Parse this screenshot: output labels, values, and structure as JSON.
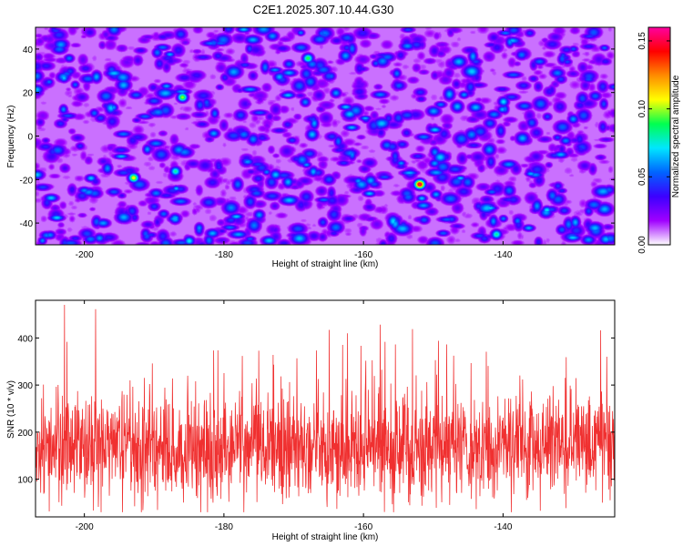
{
  "title": "C2E1.2025.307.10.44.G30",
  "chart_data": [
    {
      "type": "heatmap",
      "xlabel": "Height of straight line (km)",
      "ylabel": "Frequency (Hz)",
      "xlim": [
        -207,
        -124
      ],
      "ylim": [
        -50,
        50
      ],
      "xticks": [
        -200,
        -180,
        -160,
        -140
      ],
      "yticks": [
        -40,
        -20,
        0,
        20,
        40
      ],
      "xtick_labels": [
        "-200",
        "-180",
        "-160",
        "-140"
      ],
      "ytick_labels": [
        "-40",
        "-20",
        "0",
        "20",
        "40"
      ],
      "colorbar": {
        "label": "Normalized spectral amplitude",
        "range": [
          0,
          0.16
        ],
        "ticks": [
          0,
          0.05,
          0.1,
          0.15
        ],
        "tick_labels": [
          "0.00",
          "0.05",
          "0.10",
          "0.15"
        ],
        "colors": [
          "#ffffff",
          "#a000ff",
          "#3c00ff",
          "#0064ff",
          "#00e6ff",
          "#00ff50",
          "#ffff00",
          "#ff8c00",
          "#ff0000",
          "#ff00a0"
        ]
      },
      "background_level": 0.01,
      "peaks": [
        {
          "x": -152,
          "y": -22,
          "z": 0.155
        },
        {
          "x": -193,
          "y": -19,
          "z": 0.11
        },
        {
          "x": -186,
          "y": 18,
          "z": 0.1
        },
        {
          "x": -168,
          "y": 36,
          "z": 0.09
        },
        {
          "x": -187,
          "y": -16,
          "z": 0.08
        },
        {
          "x": -141,
          "y": -45,
          "z": 0.08
        },
        {
          "x": -185,
          "y": -48,
          "z": 0.07
        },
        {
          "x": -140,
          "y": 16,
          "z": 0.07
        },
        {
          "x": -164,
          "y": 20,
          "z": 0.06
        },
        {
          "x": -203,
          "y": 27,
          "z": 0.06
        },
        {
          "x": -175,
          "y": -36,
          "z": 0.06
        },
        {
          "x": -130,
          "y": 8,
          "z": 0.06
        }
      ]
    },
    {
      "type": "line",
      "xlabel": "Height of straight line (km)",
      "ylabel": "SNR (10 * v/v)",
      "xlim": [
        -207,
        -124
      ],
      "ylim": [
        20,
        480
      ],
      "xticks": [
        -200,
        -180,
        -160,
        -140
      ],
      "yticks": [
        100,
        200,
        300,
        400
      ],
      "xtick_labels": [
        "-200",
        "-180",
        "-160",
        "-140"
      ],
      "ytick_labels": [
        "100",
        "200",
        "300",
        "400"
      ],
      "series": [
        {
          "color": "#f03030",
          "mean": 165,
          "min": 30,
          "max": 480,
          "samples": 1900
        }
      ]
    }
  ]
}
